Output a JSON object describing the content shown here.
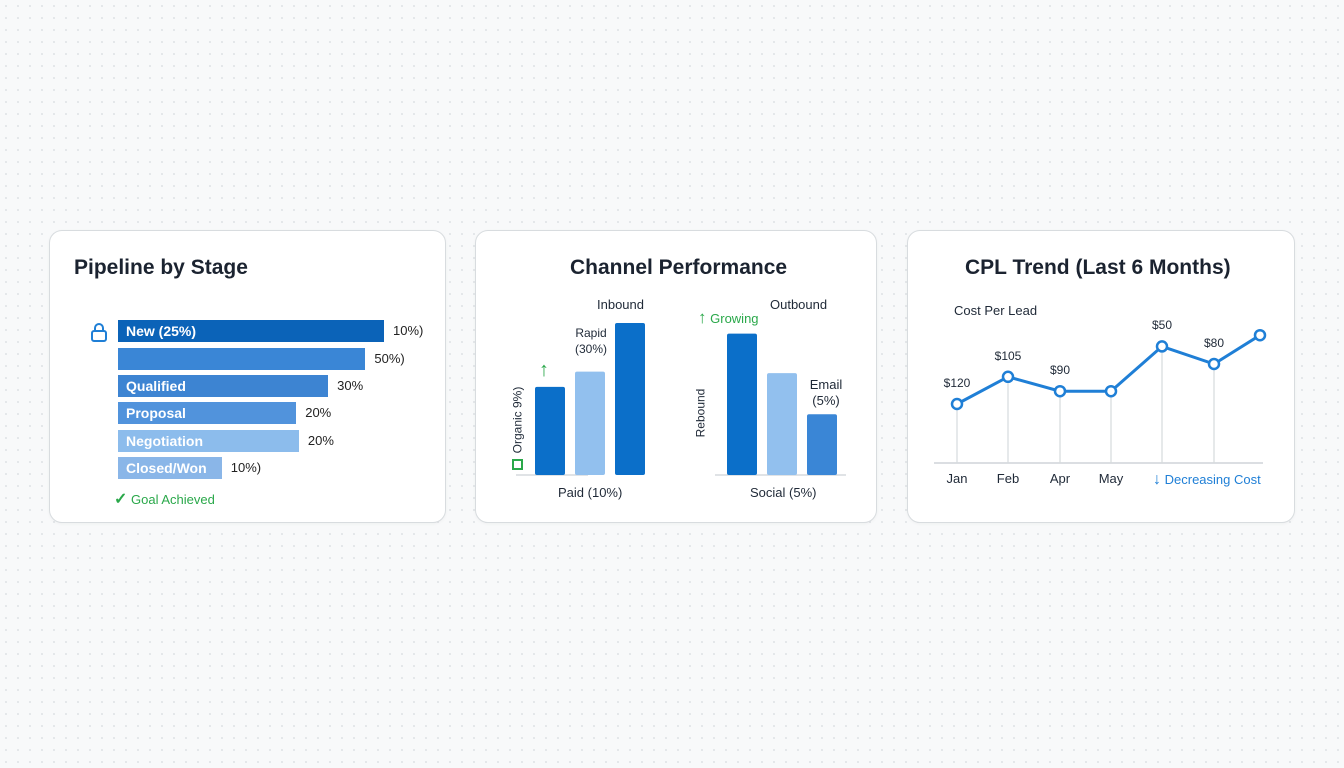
{
  "colors": {
    "dark": "#0b66c2",
    "mid": "#3d86d6",
    "light": "#92c0ee",
    "green": "#2aa84a",
    "line": "#1f7fd6"
  },
  "chart_data": [
    {
      "type": "bar",
      "orientation": "horizontal",
      "title": "Pipeline by Stage",
      "categories": [
        "New (25%)",
        "",
        "Qualified",
        "Proposal",
        "Negotiation",
        "Closed/Won"
      ],
      "value_labels": [
        "10%)",
        "50%)",
        "30%",
        "20%",
        "20%",
        "10%)"
      ],
      "values": [
        100,
        93,
        79,
        67,
        68,
        39
      ],
      "colors": [
        "#0b63b8",
        "#3a86d6",
        "#3d84d2",
        "#5193dc",
        "#8cbcec",
        "#8ab6e8"
      ],
      "footer": "Goal Achieved"
    },
    {
      "type": "bar",
      "title": "Channel Performance",
      "groups": [
        {
          "name": "Inbound",
          "values": [
            58,
            68,
            100
          ],
          "colors": [
            "#0b6fc9",
            "#92c0ee",
            "#0b6fc9"
          ],
          "bar_label": "Rapid (30%)",
          "side_label": "Organic 9%)",
          "x_label": "Paid (10%)"
        },
        {
          "name": "Outbound",
          "values": [
            93,
            67,
            40
          ],
          "colors": [
            "#0b6fc9",
            "#92c0ee",
            "#3a86d6"
          ],
          "bar_label": "Email (5%)",
          "side_label": "Rebound",
          "x_label": "Social (5%)",
          "badge": "Growing"
        }
      ]
    },
    {
      "type": "line",
      "title": "CPL Trend (Last 6 Months)",
      "ylabel": "Cost Per Lead",
      "x_labels": [
        "Jan",
        "Feb",
        "Apr",
        "May"
      ],
      "values": [
        20,
        37,
        28,
        28,
        56,
        45,
        63
      ],
      "point_labels": [
        "$120",
        "$105",
        "$90",
        "",
        "$50",
        "$80",
        ""
      ],
      "annotation": "Decreasing Cost"
    }
  ]
}
